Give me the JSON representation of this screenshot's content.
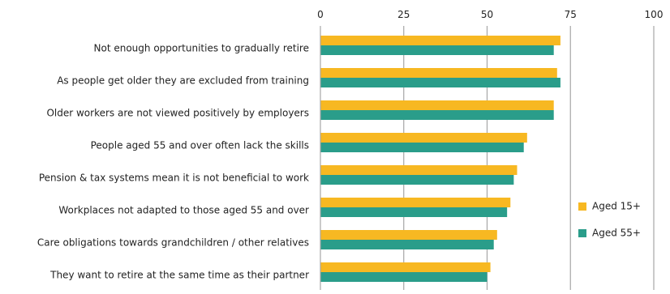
{
  "chart_data": {
    "type": "bar",
    "orientation": "horizontal",
    "categories": [
      "Not enough opportunities to gradually retire",
      "As people get older they are excluded from training",
      "Older workers are not viewed positively by employers",
      "People aged 55 and over often lack the skills",
      "Pension & tax systems mean it is not beneficial to work",
      "Workplaces not adapted to those aged 55 and over",
      "Care obligations towards grandchildren / other relatives",
      "They want to retire at the same time as their partner"
    ],
    "series": [
      {
        "name": "Aged 15+",
        "color": "#f7b822",
        "values": [
          72,
          71,
          70,
          62,
          59,
          57,
          53,
          51
        ]
      },
      {
        "name": "Aged 55+",
        "color": "#2a9d8a",
        "values": [
          70,
          72,
          70,
          61,
          58,
          56,
          52,
          50
        ]
      }
    ],
    "xlim": [
      0,
      100
    ],
    "xticks": [
      0,
      25,
      50,
      75,
      100
    ],
    "xaxis_position": "top",
    "grid": true,
    "legend_position": "right"
  }
}
